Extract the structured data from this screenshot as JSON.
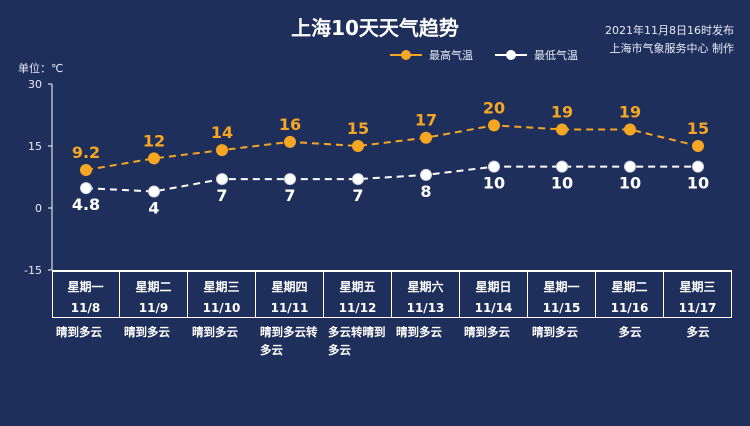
{
  "header": {
    "title": "上海10天天气趋势",
    "publish_time": "2021年11月8日16时发布",
    "publisher": "上海市气象服务中心 制作",
    "unit_label": "单位：℃"
  },
  "legend": {
    "high_label": "最高气温",
    "low_label": "最低气温"
  },
  "colors": {
    "background": "#1f2f5c",
    "high": "#f5a623",
    "low": "#ffffff",
    "axis": "#ffffff"
  },
  "chart_data": {
    "type": "line",
    "title": "上海10天天气趋势",
    "ylabel": "单位：℃",
    "ylim": [
      -15,
      30
    ],
    "yticks": [
      30,
      15,
      0,
      -15
    ],
    "categories": [
      "星期一 11/8",
      "星期二 11/9",
      "星期三 11/10",
      "星期四 11/11",
      "星期五 11/12",
      "星期六 11/13",
      "星期日 11/14",
      "星期一 11/15",
      "星期二 11/16",
      "星期三 11/17"
    ],
    "series": [
      {
        "name": "最高气温",
        "values": [
          9.2,
          12,
          14,
          16,
          15,
          17,
          20,
          19,
          19,
          15
        ],
        "labels": [
          "9.2",
          "12",
          "14",
          "16",
          "15",
          "17",
          "20",
          "19",
          "19",
          "15"
        ]
      },
      {
        "name": "最低气温",
        "values": [
          4.8,
          4,
          7,
          7,
          7,
          8,
          10,
          10,
          10,
          10
        ],
        "labels": [
          "4.8",
          "4",
          "7",
          "7",
          "7",
          "8",
          "10",
          "10",
          "10",
          "10"
        ]
      }
    ],
    "legend_position": "top-right",
    "grid": false
  },
  "days": [
    {
      "week": "星期一",
      "date": "11/8",
      "weather": "晴到多云"
    },
    {
      "week": "星期二",
      "date": "11/9",
      "weather": "晴到多云"
    },
    {
      "week": "星期三",
      "date": "11/10",
      "weather": "晴到多云"
    },
    {
      "week": "星期四",
      "date": "11/11",
      "weather": "晴到多云转多云"
    },
    {
      "week": "星期五",
      "date": "11/12",
      "weather": "多云转晴到多云"
    },
    {
      "week": "星期六",
      "date": "11/13",
      "weather": "晴到多云"
    },
    {
      "week": "星期日",
      "date": "11/14",
      "weather": "晴到多云"
    },
    {
      "week": "星期一",
      "date": "11/15",
      "weather": "晴到多云"
    },
    {
      "week": "星期二",
      "date": "11/16",
      "weather": "多云"
    },
    {
      "week": "星期三",
      "date": "11/17",
      "weather": "多云"
    }
  ]
}
